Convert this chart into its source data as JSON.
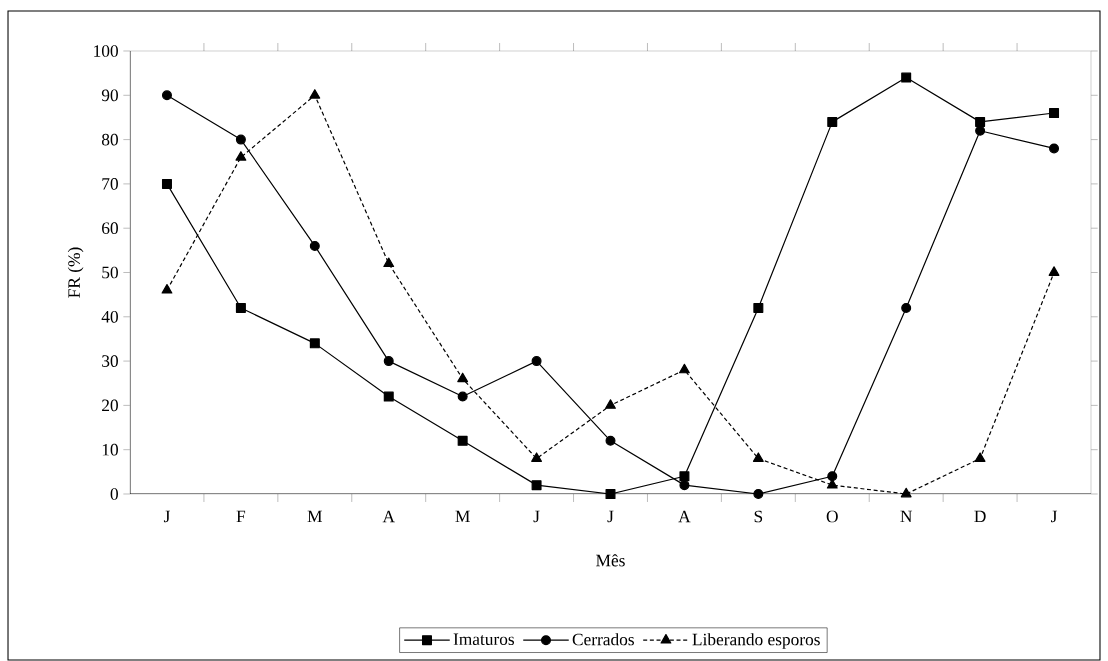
{
  "chart_data": {
    "type": "line",
    "xlabel": "Mês",
    "ylabel": "FR (%)",
    "categories": [
      "J",
      "F",
      "M",
      "A",
      "M",
      "J",
      "J",
      "A",
      "S",
      "O",
      "N",
      "D",
      "J"
    ],
    "series": [
      {
        "name": "Imaturos",
        "color": "#000000",
        "marker": "square",
        "line_style": "solid",
        "values": [
          70,
          42,
          34,
          22,
          12,
          2,
          0,
          4,
          42,
          84,
          94,
          84,
          86
        ]
      },
      {
        "name": "Cerrados",
        "color": "#000000",
        "marker": "circle",
        "line_style": "solid",
        "values": [
          90,
          80,
          56,
          30,
          22,
          30,
          12,
          2,
          0,
          4,
          42,
          82,
          78
        ]
      },
      {
        "name": "Liberando esporos",
        "color": "#000000",
        "marker": "triangle",
        "line_style": "dashed",
        "values": [
          46,
          76,
          90,
          52,
          26,
          8,
          20,
          28,
          8,
          2,
          0,
          8,
          50
        ]
      }
    ],
    "ylim": [
      0,
      100
    ],
    "yticks": [
      0,
      10,
      20,
      30,
      40,
      50,
      60,
      70,
      80,
      90,
      100
    ],
    "grid": false,
    "legend": "bottom"
  }
}
